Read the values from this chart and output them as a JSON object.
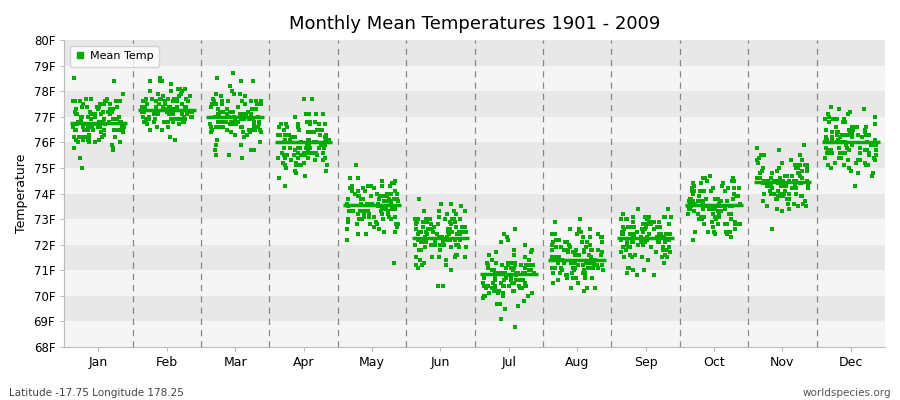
{
  "title": "Monthly Mean Temperatures 1901 - 2009",
  "ylabel": "Temperature",
  "bottom_left": "Latitude -17.75 Longitude 178.25",
  "bottom_right": "worldspecies.org",
  "legend_label": "Mean Temp",
  "dot_color": "#00aa00",
  "median_line_color": "#00aa00",
  "background_color": "#ffffff",
  "band_light": "#f5f5f5",
  "band_dark": "#e8e8e8",
  "vline_color": "#888888",
  "ylim": [
    68,
    80
  ],
  "months": [
    "Jan",
    "Feb",
    "Mar",
    "Apr",
    "May",
    "Jun",
    "Jul",
    "Aug",
    "Sep",
    "Oct",
    "Nov",
    "Dec"
  ],
  "monthly_means": [
    76.75,
    77.25,
    77.0,
    76.0,
    73.55,
    72.25,
    70.85,
    71.4,
    72.25,
    73.55,
    74.45,
    76.0
  ],
  "monthly_medians": [
    76.75,
    77.25,
    77.0,
    76.0,
    73.55,
    72.25,
    70.85,
    71.4,
    72.25,
    73.55,
    74.45,
    76.0
  ],
  "monthly_stds": [
    0.65,
    0.55,
    0.6,
    0.65,
    0.65,
    0.65,
    0.7,
    0.6,
    0.65,
    0.65,
    0.65,
    0.65
  ],
  "n_years": 109,
  "seed": 42
}
